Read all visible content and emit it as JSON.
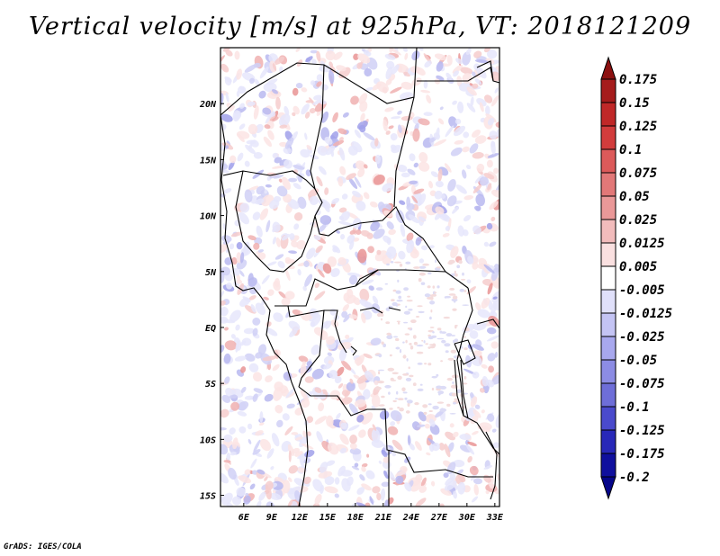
{
  "title": "Vertical velocity [m/s] at 925hPa, VT: 2018121209",
  "footer": "GrADS: IGES/COLA",
  "map": {
    "lon_labels": [
      "6E",
      "9E",
      "12E",
      "15E",
      "18E",
      "21E",
      "24E",
      "27E",
      "30E",
      "33E"
    ],
    "lat_labels": [
      "20N",
      "15N",
      "10N",
      "5N",
      "EQ",
      "5S",
      "10S",
      "15S"
    ],
    "lon_range": [
      3.5,
      33.5
    ],
    "lat_range": [
      -16,
      25
    ]
  },
  "colorbar": {
    "labels": [
      "0.175",
      "0.15",
      "0.125",
      "0.1",
      "0.075",
      "0.05",
      "0.025",
      "0.0125",
      "0.005",
      "-0.005",
      "-0.0125",
      "-0.025",
      "-0.05",
      "-0.075",
      "-0.1",
      "-0.125",
      "-0.175",
      "-0.2"
    ],
    "colors": [
      "#8c1010",
      "#a51c1c",
      "#c02828",
      "#d23c3c",
      "#dc5a5a",
      "#e27878",
      "#ea9898",
      "#f2bcbc",
      "#fae0e0",
      "#ffffff",
      "#e0e0fa",
      "#c4c4f4",
      "#a8a8ee",
      "#8c8ce4",
      "#6e6ed8",
      "#4a4acc",
      "#2828b8",
      "#10109e",
      "#06068a"
    ]
  }
}
